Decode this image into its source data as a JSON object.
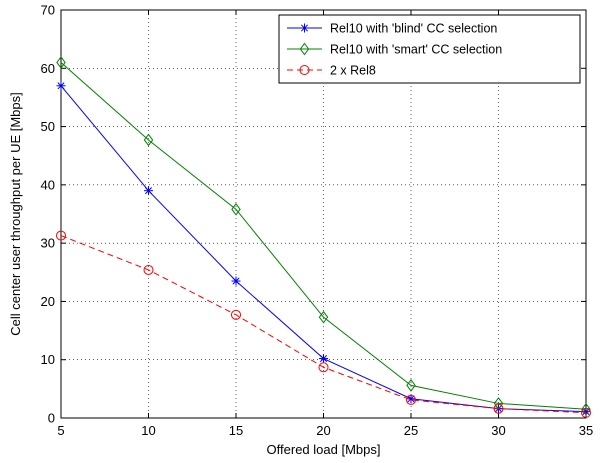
{
  "chart_data": {
    "type": "line",
    "title": "",
    "xlabel": "Offered load [Mbps]",
    "ylabel": "Cell center user throughput per UE [Mbps]",
    "x": [
      5,
      10,
      15,
      20,
      25,
      30,
      35
    ],
    "xlim": [
      5,
      35
    ],
    "ylim": [
      0,
      70
    ],
    "xticks": [
      "5",
      "10",
      "15",
      "20",
      "25",
      "30",
      "35"
    ],
    "yticks": [
      "0",
      "10",
      "20",
      "30",
      "40",
      "50",
      "60",
      "70"
    ],
    "grid": true,
    "legend_position": "top-right",
    "series": [
      {
        "name": "Rel10 with 'blind' CC selection",
        "values": [
          57.0,
          39.0,
          23.5,
          10.2,
          3.3,
          1.6,
          1.1
        ],
        "color": "#0000ff",
        "marker": "asterisk",
        "line_style": "solid"
      },
      {
        "name": "Rel10 with 'smart' CC selection",
        "values": [
          61.0,
          47.7,
          35.8,
          17.3,
          5.6,
          2.5,
          1.5
        ],
        "color": "#008000",
        "marker": "diamond",
        "line_style": "solid"
      },
      {
        "name": "2 x Rel8",
        "values": [
          31.3,
          25.4,
          17.7,
          8.7,
          3.1,
          1.6,
          0.9
        ],
        "color": "#ff0000",
        "marker": "circle",
        "line_style": "dashed"
      }
    ]
  }
}
